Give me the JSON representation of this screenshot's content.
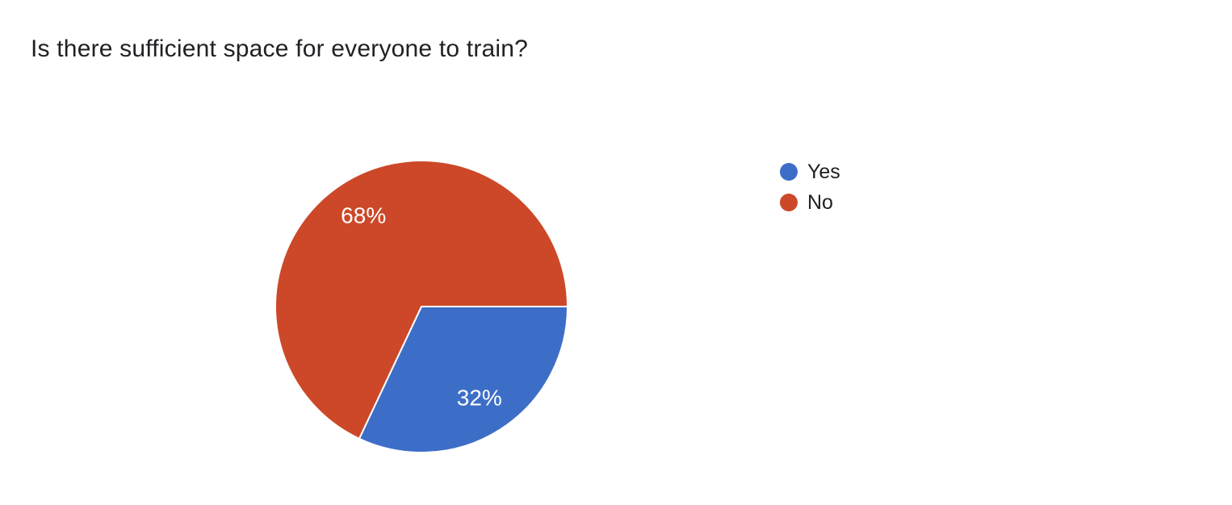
{
  "title": "Is there sufficient space for everyone to train?",
  "chart_data": {
    "type": "pie",
    "title": "Is there sufficient space for everyone to train?",
    "categories": [
      "Yes",
      "No"
    ],
    "values": [
      32,
      68
    ],
    "slices": [
      {
        "label": "Yes",
        "value": 32,
        "pct_label": "32%",
        "color": "#3D6EC7"
      },
      {
        "label": "No",
        "value": 68,
        "pct_label": "68%",
        "color": "#CC4828"
      }
    ],
    "unit": "%",
    "start_angle_deg": 0,
    "direction": "clockwise",
    "legend_position": "right",
    "background_color": "#FFFFFF",
    "title_color": "#202124",
    "legend_text_color": "#212121",
    "slice_label_color": "#FFFFFF",
    "slice_border_color": "#FFFFFF"
  }
}
